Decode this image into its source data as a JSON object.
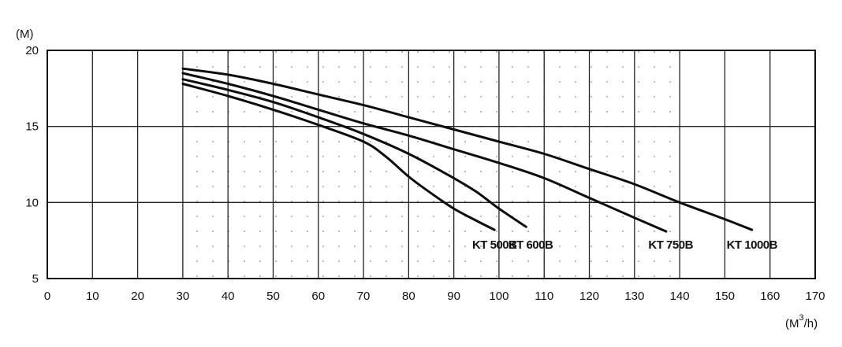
{
  "chart_data": {
    "type": "line",
    "ylabel": "(M)",
    "xlabel_main": "(M",
    "xlabel_sup": "3",
    "xlabel_end": "/h)",
    "xlim": [
      0,
      170
    ],
    "ylim": [
      5,
      20
    ],
    "xticks": [
      0,
      10,
      20,
      30,
      40,
      50,
      60,
      70,
      80,
      90,
      100,
      110,
      120,
      130,
      140,
      150,
      160,
      170
    ],
    "yticks": [
      5,
      10,
      15,
      20
    ],
    "grid": true,
    "series": [
      {
        "name": "KT 500B",
        "x": [
          30,
          40,
          50,
          60,
          70,
          75,
          80,
          85,
          90,
          95,
          99
        ],
        "y": [
          17.8,
          17.0,
          16.1,
          15.1,
          14.0,
          13.0,
          11.7,
          10.6,
          9.6,
          8.8,
          8.2
        ]
      },
      {
        "name": "KT 600B",
        "x": [
          30,
          40,
          50,
          60,
          70,
          80,
          90,
          95,
          100,
          106
        ],
        "y": [
          18.1,
          17.4,
          16.6,
          15.6,
          14.5,
          13.2,
          11.6,
          10.7,
          9.6,
          8.4
        ]
      },
      {
        "name": "KT 750B",
        "x": [
          30,
          40,
          50,
          60,
          70,
          80,
          90,
          100,
          110,
          120,
          130,
          137
        ],
        "y": [
          18.5,
          17.8,
          17.0,
          16.1,
          15.2,
          14.4,
          13.5,
          12.6,
          11.6,
          10.3,
          9.0,
          8.1
        ]
      },
      {
        "name": "KT 1000B",
        "x": [
          30,
          40,
          50,
          60,
          70,
          80,
          90,
          100,
          110,
          120,
          130,
          140,
          150,
          156
        ],
        "y": [
          18.8,
          18.4,
          17.8,
          17.1,
          16.4,
          15.6,
          14.8,
          14.0,
          13.2,
          12.2,
          11.2,
          10.0,
          8.9,
          8.2
        ]
      }
    ],
    "labels": [
      {
        "text": "KT 500B",
        "x": 99
      },
      {
        "text": "KT 600B",
        "x": 107
      },
      {
        "text": "KT 750B",
        "x": 138
      },
      {
        "text": "KT 1000B",
        "x": 156
      }
    ]
  }
}
